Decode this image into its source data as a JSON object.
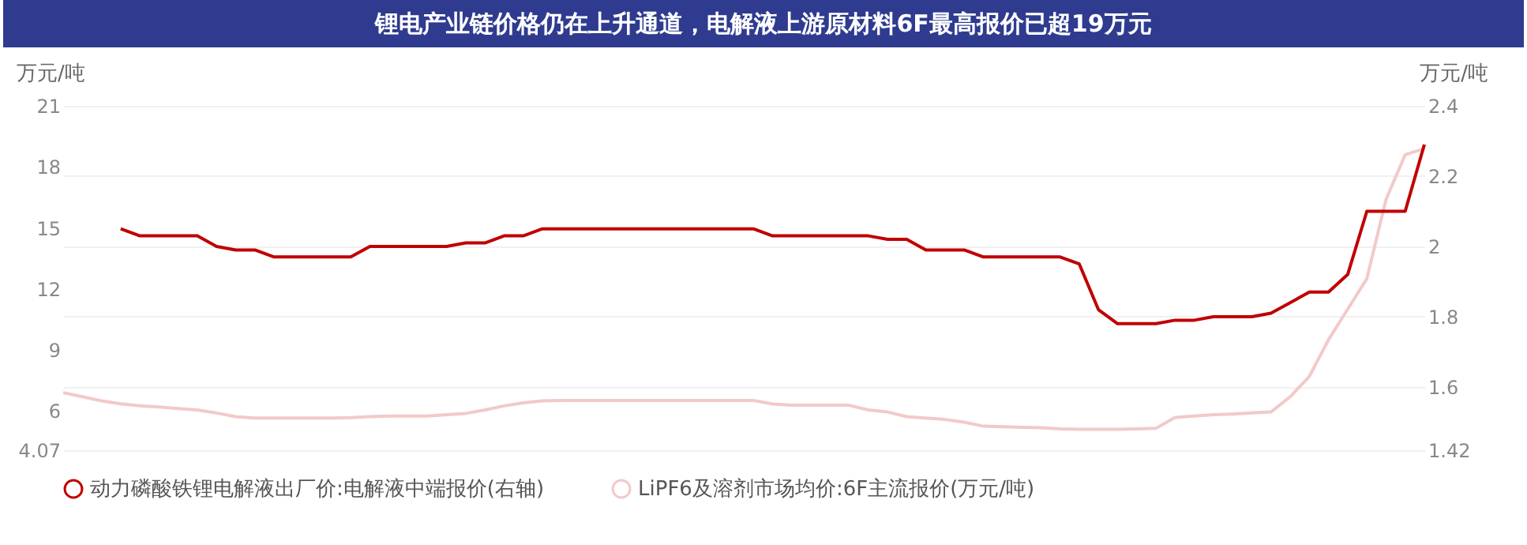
{
  "chart_data": {
    "type": "line",
    "title": "锂电产业链价格仍在上升通道，电解液上游原材料6F最高报价已超19万元",
    "ylabel": "万元/吨",
    "y2label": "万元/吨",
    "categories": [
      null,
      null,
      null,
      null,
      null,
      null,
      null,
      null,
      null,
      null,
      null,
      null,
      null,
      null,
      null,
      null,
      null,
      null,
      null,
      null,
      null,
      null,
      null,
      null,
      null,
      null,
      null,
      null,
      null,
      null,
      null,
      null,
      null,
      null,
      null,
      null,
      null,
      null,
      null,
      null,
      null,
      null,
      null,
      null,
      null,
      null,
      null,
      null,
      null,
      null,
      null,
      null,
      null,
      null,
      null,
      null,
      null,
      null,
      null,
      null,
      null,
      null,
      null,
      null,
      null,
      null,
      null,
      null,
      null,
      null,
      null,
      null
    ],
    "series": [
      {
        "name": "动力磷酸铁锂电解液出厂价:电解液中端报价(右轴)",
        "color": "#c00000",
        "axis": "y2",
        "values": [
          null,
          null,
          null,
          2.05,
          2.03,
          2.03,
          2.03,
          2.03,
          2.0,
          1.99,
          1.99,
          1.97,
          1.97,
          1.97,
          1.97,
          1.97,
          2.0,
          2.0,
          2.0,
          2.0,
          2.0,
          2.01,
          2.01,
          2.03,
          2.03,
          2.05,
          2.05,
          2.05,
          2.05,
          2.05,
          2.05,
          2.05,
          2.05,
          2.05,
          2.05,
          2.05,
          2.05,
          2.03,
          2.03,
          2.03,
          2.03,
          2.03,
          2.03,
          2.02,
          2.02,
          1.99,
          1.99,
          1.99,
          1.97,
          1.97,
          1.97,
          1.97,
          1.97,
          1.95,
          1.82,
          1.78,
          1.78,
          1.78,
          1.79,
          1.79,
          1.8,
          1.8,
          1.8,
          1.81,
          1.84,
          1.87,
          1.87,
          1.92,
          2.1,
          2.1,
          2.1,
          2.29
        ]
      },
      {
        "name": "LiPF6及溶剂市场均价:6F主流报价(万元/吨)",
        "color": "#f2c9c9",
        "values": [
          6.9,
          6.7,
          6.5,
          6.35,
          6.25,
          6.2,
          6.12,
          6.05,
          5.9,
          5.72,
          5.65,
          5.65,
          5.65,
          5.65,
          5.65,
          5.67,
          5.72,
          5.75,
          5.75,
          5.75,
          5.82,
          5.88,
          6.05,
          6.25,
          6.4,
          6.5,
          6.52,
          6.52,
          6.52,
          6.52,
          6.52,
          6.52,
          6.52,
          6.52,
          6.52,
          6.52,
          6.52,
          6.34,
          6.28,
          6.28,
          6.28,
          6.28,
          6.05,
          5.95,
          5.72,
          5.65,
          5.58,
          5.45,
          5.25,
          5.23,
          5.2,
          5.18,
          5.12,
          5.1,
          5.1,
          5.1,
          5.12,
          5.15,
          5.68,
          5.75,
          5.82,
          5.85,
          5.9,
          5.95,
          6.7,
          7.7,
          9.5,
          11.0,
          12.5,
          16.4,
          18.6,
          18.9
        ]
      }
    ],
    "ylim": [
      4.07,
      21
    ],
    "yticks": [
      {
        "value": 4.07,
        "label": "4.07"
      },
      6,
      9,
      12,
      15,
      18,
      21
    ],
    "y2lim": [
      1.42,
      2.4
    ],
    "y2ticks": [
      {
        "value": 1.42,
        "label": "1.42"
      },
      1.6,
      1.8,
      2,
      2.2,
      2.4
    ],
    "grid": true,
    "legend": "bottom left"
  }
}
